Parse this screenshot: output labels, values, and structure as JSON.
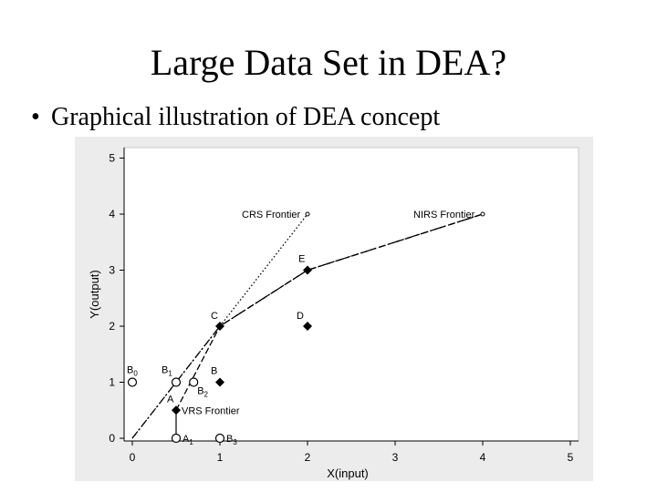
{
  "slide": {
    "title": "Large Data Set in DEA?",
    "bullet": "Graphical illustration of DEA concept",
    "bullet_symbol": "•"
  },
  "chart_data": {
    "type": "scatter",
    "xlabel": "X(input)",
    "ylabel": "Y(output)",
    "xlim": [
      0,
      5
    ],
    "ylim": [
      0,
      5
    ],
    "xticks": [
      0,
      1,
      2,
      3,
      4,
      5
    ],
    "yticks": [
      0,
      1,
      2,
      3,
      4,
      5
    ],
    "grid": false,
    "filled_points": [
      {
        "label": "A",
        "x": 0.5,
        "y": 0.5
      },
      {
        "label": "C",
        "x": 1,
        "y": 2
      },
      {
        "label": "E",
        "x": 2,
        "y": 3
      },
      {
        "label": "D",
        "x": 2,
        "y": 2
      },
      {
        "label": "B",
        "x": 1,
        "y": 1
      }
    ],
    "hollow_points": [
      {
        "label": "B0",
        "x": 0,
        "y": 1
      },
      {
        "label": "B1",
        "x": 0.5,
        "y": 1
      },
      {
        "label": "B2",
        "x": 0.7,
        "y": 1
      },
      {
        "label": "A1",
        "x": 0.5,
        "y": 0
      },
      {
        "label": "B3",
        "x": 1,
        "y": 0
      }
    ],
    "frontiers": [
      {
        "name": "CRS Frontier",
        "style": "dotted",
        "points": [
          [
            0,
            0
          ],
          [
            2,
            4
          ]
        ]
      },
      {
        "name": "NIRS Frontier",
        "style": "dash-dot",
        "points": [
          [
            0,
            0
          ],
          [
            1,
            2
          ],
          [
            2,
            3
          ],
          [
            4,
            4
          ]
        ]
      },
      {
        "name": "VRS Frontier",
        "style": "dashed",
        "points": [
          [
            0.5,
            0.5
          ],
          [
            1,
            2
          ],
          [
            2,
            3
          ],
          [
            4,
            4
          ]
        ]
      }
    ],
    "annotations": [
      {
        "text": "CRS Frontier",
        "x": 2,
        "y": 4
      },
      {
        "text": "NIRS Frontier",
        "x": 4,
        "y": 4
      },
      {
        "text": "VRS Frontier",
        "x": 0.5,
        "y": 0.5
      }
    ],
    "colors": {
      "panel": "#ececec",
      "plot": "#ffffff",
      "ink": "#000000"
    }
  }
}
